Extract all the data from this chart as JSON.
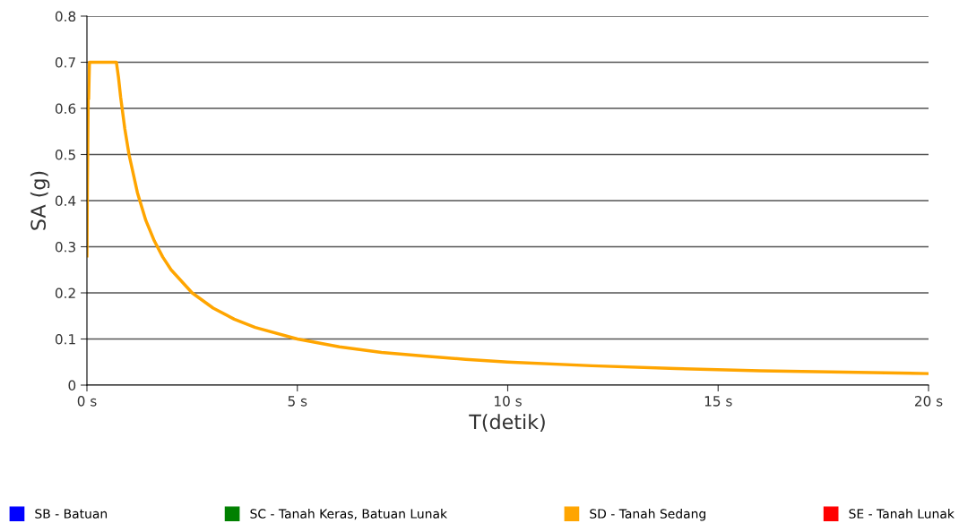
{
  "chart_data": {
    "type": "line",
    "xlabel": "T(detik)",
    "ylabel": "SA (g)",
    "xlim": [
      0,
      20
    ],
    "ylim": [
      0,
      0.8
    ],
    "xticks": [
      {
        "value": 0,
        "label": "0 s"
      },
      {
        "value": 5,
        "label": "5 s"
      },
      {
        "value": 10,
        "label": "10 s"
      },
      {
        "value": 15,
        "label": "15 s"
      },
      {
        "value": 20,
        "label": "20 s"
      }
    ],
    "yticks": [
      0,
      0.1,
      0.2,
      0.3,
      0.4,
      0.5,
      0.6,
      0.7,
      0.8
    ],
    "grid": "y",
    "legend": "bottom",
    "marker": "none",
    "line_style": "solid",
    "series": [
      {
        "name": "SB - Batuan",
        "color": "#0000ff"
      },
      {
        "name": "SC - Tanah Keras, Batuan Lunak",
        "color": "#008000"
      },
      {
        "name": "SD - Tanah Sedang",
        "color": "#ffa500",
        "x": [
          0,
          0.01,
          0.02,
          0.03,
          0.04,
          0.06,
          0.09,
          0.7,
          0.75,
          0.8,
          0.9,
          1,
          1.2,
          1.4,
          1.6,
          1.8,
          2,
          2.5,
          3,
          3.5,
          4,
          5,
          6,
          7,
          8,
          9,
          10,
          12,
          14,
          16,
          18,
          20
        ],
        "values": [
          0.28,
          0.43,
          0.52,
          0.62,
          0.62,
          0.7,
          0.7,
          0.7,
          0.667,
          0.625,
          0.556,
          0.5,
          0.417,
          0.357,
          0.313,
          0.278,
          0.25,
          0.2,
          0.167,
          0.143,
          0.125,
          0.1,
          0.083,
          0.071,
          0.063,
          0.056,
          0.05,
          0.042,
          0.036,
          0.031,
          0.028,
          0.025
        ]
      },
      {
        "name": "SE - Tanah Lunak",
        "color": "#ff0000"
      }
    ]
  }
}
